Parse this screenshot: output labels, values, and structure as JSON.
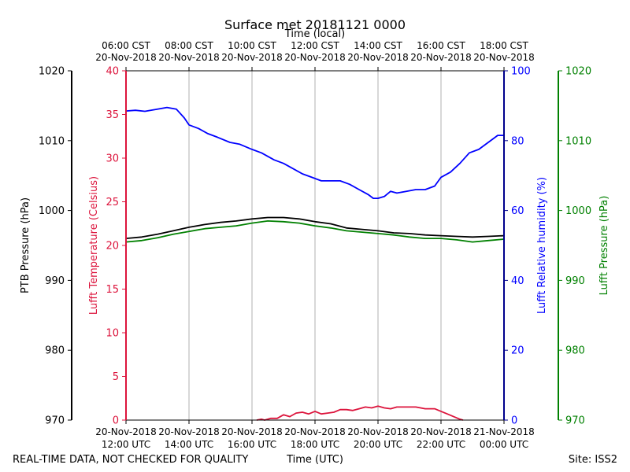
{
  "chart_data": {
    "type": "line",
    "title": "Surface met 20181121 0000",
    "top_axis_label": "Time (local)",
    "top_tick_labels": [
      [
        "06:00 CST",
        "20-Nov-2018"
      ],
      [
        "08:00 CST",
        "20-Nov-2018"
      ],
      [
        "10:00 CST",
        "20-Nov-2018"
      ],
      [
        "12:00 CST",
        "20-Nov-2018"
      ],
      [
        "14:00 CST",
        "20-Nov-2018"
      ],
      [
        "16:00 CST",
        "20-Nov-2018"
      ],
      [
        "18:00 CST",
        "20-Nov-2018"
      ]
    ],
    "bottom_tick_labels": [
      [
        "20-Nov-2018",
        "12:00 UTC"
      ],
      [
        "20-Nov-2018",
        "14:00 UTC"
      ],
      [
        "20-Nov-2018",
        "16:00 UTC"
      ],
      [
        "20-Nov-2018",
        "18:00 UTC"
      ],
      [
        "20-Nov-2018",
        "20:00 UTC"
      ],
      [
        "20-Nov-2018",
        "22:00 UTC"
      ],
      [
        "21-Nov-2018",
        "00:00 UTC"
      ]
    ],
    "xlabel": "Time (UTC)",
    "xlim_hours_utc": [
      12,
      24
    ],
    "footer_left": "REAL-TIME DATA, NOT CHECKED FOR QUALITY",
    "footer_right": "Site: ISS2",
    "axes": {
      "ptb_pressure": {
        "label": "PTB Pressure (hPa)",
        "range": [
          970,
          1020
        ],
        "ticks": [
          970,
          980,
          990,
          1000,
          1010,
          1020
        ],
        "color": "#000000"
      },
      "temperature": {
        "label": "Lufft Temperature (Celsius)",
        "range": [
          0,
          40
        ],
        "ticks": [
          0,
          5,
          10,
          15,
          20,
          25,
          30,
          35,
          40
        ],
        "color": "#dc143c"
      },
      "humidity": {
        "label": "Lufft Relative humidity (%)",
        "range": [
          0,
          100
        ],
        "ticks": [
          0,
          20,
          40,
          60,
          80,
          100
        ],
        "color": "#0000ff"
      },
      "lufft_pressure": {
        "label": "Lufft Pressure (hPa)",
        "range": [
          970,
          1020
        ],
        "ticks": [
          970,
          980,
          990,
          1000,
          1010,
          1020
        ],
        "color": "#008000"
      }
    },
    "series": [
      {
        "name": "Lufft Relative humidity",
        "axis": "humidity",
        "color": "#0000ff",
        "x": [
          12.0,
          12.3,
          12.6,
          13.0,
          13.3,
          13.6,
          13.85,
          14.0,
          14.3,
          14.6,
          14.9,
          15.3,
          15.6,
          16.0,
          16.3,
          16.7,
          17.0,
          17.3,
          17.6,
          17.9,
          18.2,
          18.5,
          18.8,
          19.1,
          19.4,
          19.7,
          19.85,
          20.0,
          20.2,
          20.4,
          20.6,
          20.9,
          21.2,
          21.5,
          21.8,
          22.0,
          22.3,
          22.6,
          22.9,
          23.2,
          23.5,
          23.8,
          24.0
        ],
        "values": [
          88.5,
          88.7,
          88.4,
          89.0,
          89.5,
          89.0,
          86.5,
          84.5,
          83.5,
          82.0,
          81.0,
          79.5,
          79.0,
          77.5,
          76.5,
          74.5,
          73.5,
          72.0,
          70.5,
          69.5,
          68.5,
          68.5,
          68.5,
          67.5,
          66.0,
          64.5,
          63.5,
          63.5,
          64.0,
          65.5,
          65.0,
          65.5,
          66.0,
          66.0,
          67.0,
          69.5,
          71.0,
          73.5,
          76.5,
          77.5,
          79.5,
          81.5,
          81.5
        ]
      },
      {
        "name": "PTB Pressure",
        "axis": "ptb_pressure",
        "color": "#000000",
        "x": [
          12.0,
          12.5,
          13.0,
          13.5,
          14.0,
          14.5,
          15.0,
          15.5,
          16.0,
          16.5,
          17.0,
          17.5,
          18.0,
          18.5,
          19.0,
          19.5,
          20.0,
          20.5,
          21.0,
          21.5,
          22.0,
          22.5,
          23.0,
          23.5,
          24.0
        ],
        "values": [
          996.0,
          996.2,
          996.6,
          997.1,
          997.6,
          998.0,
          998.3,
          998.5,
          998.8,
          999.0,
          999.0,
          998.8,
          998.4,
          998.1,
          997.5,
          997.3,
          997.1,
          996.8,
          996.7,
          996.5,
          996.4,
          996.3,
          996.2,
          996.3,
          996.4
        ]
      },
      {
        "name": "Lufft Pressure",
        "axis": "lufft_pressure",
        "color": "#008000",
        "x": [
          12.0,
          12.5,
          13.0,
          13.5,
          14.0,
          14.5,
          15.0,
          15.5,
          16.0,
          16.5,
          17.0,
          17.5,
          18.0,
          18.5,
          19.0,
          19.5,
          20.0,
          20.5,
          21.0,
          21.5,
          22.0,
          22.5,
          23.0,
          23.5,
          24.0
        ],
        "values": [
          995.5,
          995.7,
          996.1,
          996.6,
          997.0,
          997.4,
          997.6,
          997.8,
          998.2,
          998.5,
          998.4,
          998.2,
          997.8,
          997.5,
          997.1,
          996.9,
          996.7,
          996.5,
          996.2,
          996.0,
          996.0,
          995.8,
          995.5,
          995.7,
          995.9
        ]
      },
      {
        "name": "Lufft Temperature",
        "axis": "temperature",
        "color": "#dc143c",
        "x": [
          16.15,
          16.3,
          16.4,
          16.6,
          16.8,
          17.0,
          17.2,
          17.4,
          17.6,
          17.8,
          18.0,
          18.2,
          18.4,
          18.6,
          18.8,
          19.0,
          19.2,
          19.4,
          19.6,
          19.8,
          20.0,
          20.2,
          20.4,
          20.6,
          20.8,
          21.0,
          21.2,
          21.5,
          21.8,
          22.0,
          22.2,
          22.4,
          22.6,
          22.7
        ],
        "values": [
          0.0,
          0.1,
          0.0,
          0.2,
          0.2,
          0.6,
          0.4,
          0.8,
          0.9,
          0.7,
          1.0,
          0.7,
          0.8,
          0.9,
          1.2,
          1.2,
          1.1,
          1.3,
          1.5,
          1.4,
          1.6,
          1.4,
          1.3,
          1.5,
          1.5,
          1.5,
          1.5,
          1.3,
          1.3,
          1.0,
          0.7,
          0.4,
          0.1,
          0.0
        ]
      }
    ]
  }
}
